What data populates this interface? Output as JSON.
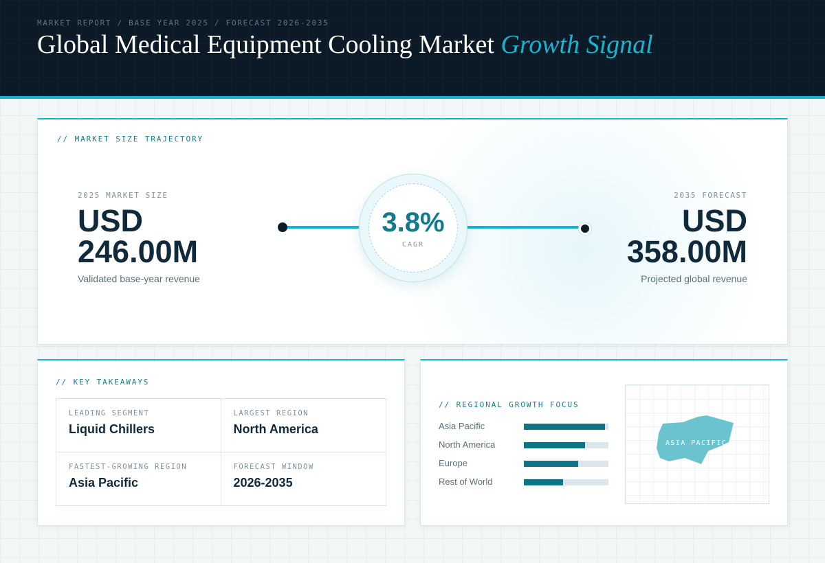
{
  "header": {
    "eyebrow": "MARKET REPORT / BASE YEAR 2025 / FORECAST 2026-2035",
    "title_main": "Global Medical Equipment Cooling Market ",
    "title_accent": "Growth Signal"
  },
  "trajectory": {
    "section_label": "// MARKET SIZE TRAJECTORY",
    "base": {
      "caption": "2025 MARKET SIZE",
      "value": "USD 246.00M",
      "description": "Validated base-year revenue"
    },
    "forecast": {
      "caption": "2035 FORECAST",
      "value": "USD 358.00M",
      "description": "Projected global revenue"
    },
    "cagr": {
      "value": "3.8%",
      "label": "CAGR"
    }
  },
  "takeaways": {
    "section_label": "// KEY TAKEAWAYS",
    "items": [
      {
        "caption": "LEADING SEGMENT",
        "value": "Liquid Chillers"
      },
      {
        "caption": "LARGEST REGION",
        "value": "North America"
      },
      {
        "caption": "FASTEST-GROWING REGION",
        "value": "Asia Pacific"
      },
      {
        "caption": "FORECAST WINDOW",
        "value": "2026-2035"
      }
    ]
  },
  "regional": {
    "section_label": "// REGIONAL GROWTH FOCUS",
    "regions": [
      {
        "name": "Asia Pacific",
        "level": 0.96
      },
      {
        "name": "North America",
        "level": 0.72
      },
      {
        "name": "Europe",
        "level": 0.64
      },
      {
        "name": "Rest of World",
        "level": 0.46
      }
    ],
    "map_label": "ASIA PACIFIC"
  },
  "colors": {
    "header_bg": "#0b1a26",
    "accent": "#12b6d2",
    "teal_dark": "#0f7586",
    "text_dark": "#102a3c",
    "map_fill": "#6cc3d0"
  }
}
